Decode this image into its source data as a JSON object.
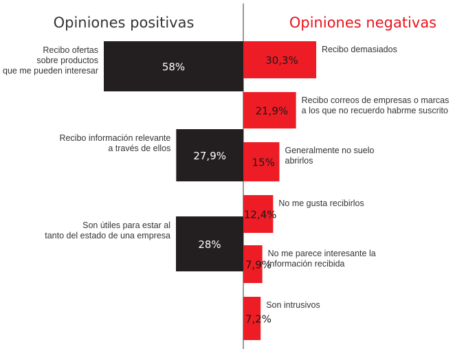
{
  "chart_data": {
    "type": "bar",
    "subtype": "diverging-horizontal",
    "colors": {
      "positive": "#231f20",
      "negative": "#ee1c25",
      "axis": "#333333",
      "negative_title": "#e8141c",
      "positive_title": "#333333"
    },
    "positive": {
      "title": "Opiniones positivas",
      "items": [
        {
          "label": [
            "Recibo ofertas",
            "sobre productos",
            "que me pueden interesar"
          ],
          "value": 58,
          "display": "58%"
        },
        {
          "label": [
            "Recibo información relevante",
            "a través de ellos"
          ],
          "value": 27.9,
          "display": "27,9%"
        },
        {
          "label": [
            "Son útiles para estar al",
            "tanto del estado de una empresa"
          ],
          "value": 28,
          "display": "28%"
        }
      ]
    },
    "negative": {
      "title": "Opiniones negativas",
      "items": [
        {
          "label": [
            "Recibo demasiados"
          ],
          "value": 30.3,
          "display": "30,3%"
        },
        {
          "label": [
            "Recibo correos de empresas o marcas",
            "a los que no recuerdo habrme suscrito"
          ],
          "value": 21.9,
          "display": "21,9%"
        },
        {
          "label": [
            "Generalmente no suelo",
            "abrirlos"
          ],
          "value": 15,
          "display": "15%"
        },
        {
          "label": [
            "No me gusta recibirlos"
          ],
          "value": 12.4,
          "display": "12,4%"
        },
        {
          "label": [
            "No me parece interesante la",
            "información recibida"
          ],
          "value": 7.9,
          "display": "7,9%"
        },
        {
          "label": [
            "Son intrusivos"
          ],
          "value": 7.2,
          "display": "7,2%"
        }
      ]
    }
  }
}
